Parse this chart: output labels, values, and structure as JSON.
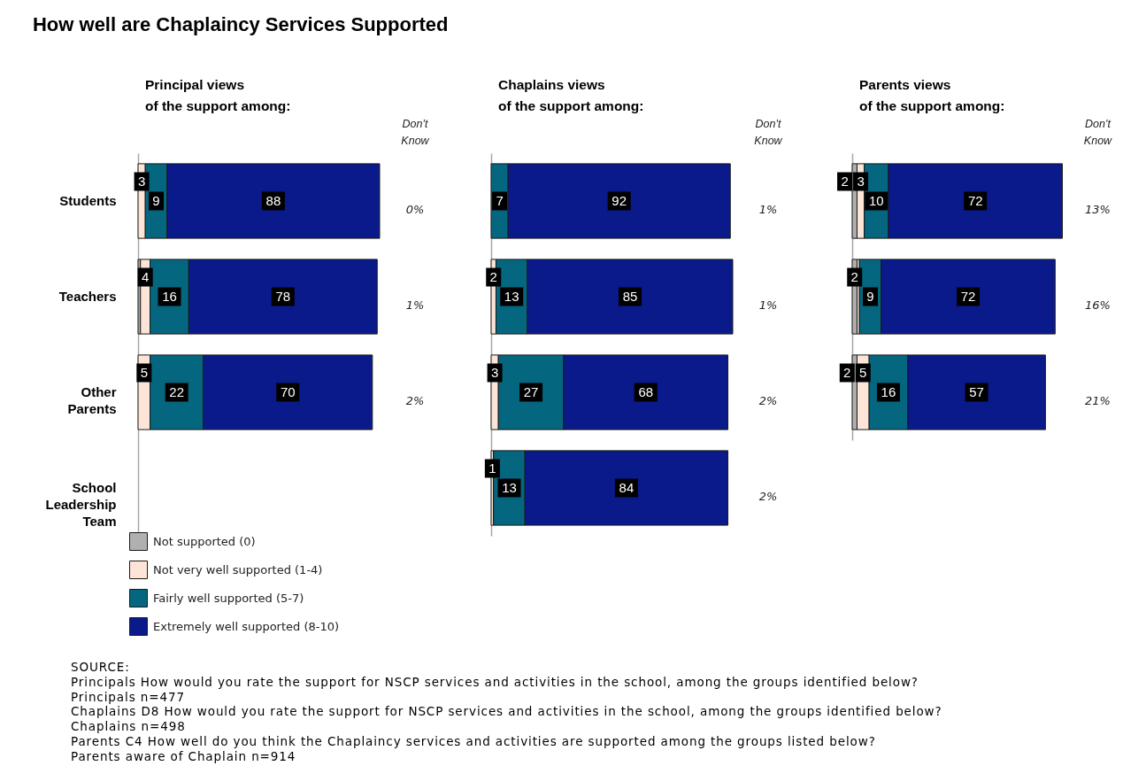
{
  "chart_data": [
    {
      "type": "bar",
      "orientation": "horizontal",
      "stacked": true,
      "title": "How well are Chaplaincy Services Supported",
      "subtitle": "Principal views\nof the support among:",
      "categories": [
        "Students",
        "Teachers",
        "Other Parents",
        "School Leadership Team"
      ],
      "series": [
        {
          "name": "Not supported (0)",
          "color": "#b0b0b0",
          "values": [
            null,
            1,
            null,
            null
          ]
        },
        {
          "name": "Not very well supported (1-4)",
          "color": "#fce4d6",
          "values": [
            3,
            4,
            5,
            null
          ],
          "value_labels": [
            "3",
            "4",
            "5",
            null
          ]
        },
        {
          "name": "Fairly well supported (5-7)",
          "color": "#05667f",
          "values": [
            9,
            16,
            22,
            null
          ],
          "value_labels": [
            "9",
            "16",
            "22",
            null
          ]
        },
        {
          "name": "Extremely well supported (8-10)",
          "color": "#0a1a8a",
          "values": [
            88,
            78,
            70,
            null
          ],
          "value_labels": [
            "88",
            "78",
            "70",
            null
          ]
        }
      ],
      "legend": "bottom left",
      "tick_labels": "y",
      "annotations": [
        "Don’t\nKnow",
        "0%",
        "1%",
        "2%"
      ]
    },
    {
      "type": "bar",
      "orientation": "horizontal",
      "stacked": true,
      "subtitle": "Chaplains views\nof the support among:",
      "categories": [
        null,
        null,
        null,
        null
      ],
      "series": [
        {
          "color": "#fce4d6",
          "values": [
            null,
            2,
            3,
            1
          ],
          "value_labels": [
            null,
            "2",
            "3",
            "1"
          ]
        },
        {
          "color": "#05667f",
          "values": [
            7,
            13,
            27,
            13
          ],
          "value_labels": [
            "7",
            "13",
            "27",
            "13"
          ]
        },
        {
          "color": "#0a1a8a",
          "values": [
            92,
            85,
            68,
            84
          ],
          "value_labels": [
            "92",
            "85",
            "68",
            "84"
          ]
        }
      ],
      "tick_labels": false,
      "annotations": [
        "Don’t\nKnow",
        "1%",
        "1%",
        "2%",
        "2%"
      ]
    },
    {
      "type": "bar",
      "orientation": "horizontal",
      "stacked": true,
      "subtitle": "Parents views\nof the support among:",
      "categories": [
        null,
        null,
        null
      ],
      "series": [
        {
          "color": "#b0b0b0",
          "values": [
            2,
            2,
            2
          ],
          "value_labels": [
            "2",
            "2",
            "2"
          ]
        },
        {
          "color": "#fce4d6",
          "values": [
            3,
            1,
            5
          ],
          "value_labels": [
            "3",
            null,
            "5"
          ]
        },
        {
          "color": "#05667f",
          "values": [
            10,
            9,
            16
          ],
          "value_labels": [
            "10",
            "9",
            "16"
          ]
        },
        {
          "color": "#0a1a8a",
          "values": [
            72,
            72,
            57
          ],
          "value_labels": [
            "72",
            "72",
            "57"
          ]
        }
      ],
      "tick_labels": false,
      "annotations": [
        "Don’t\nKnow",
        "13%",
        "16%",
        "21%"
      ]
    },
    {
      "type": "other",
      "annotations": [
        "SOURCE:",
        "Principals How would you rate the support for NSCP services and activities in the school, among the groups identified below?",
        "Principals n=477",
        "Chaplains D8 How would you rate the support for NSCP services and activities in the school, among the groups identified below?",
        "Chaplains n=498",
        "Parents C4 How well do you think the Chaplaincy services and activities are supported among the groups listed below?",
        "Parents aware of Chaplain n=914"
      ]
    }
  ]
}
